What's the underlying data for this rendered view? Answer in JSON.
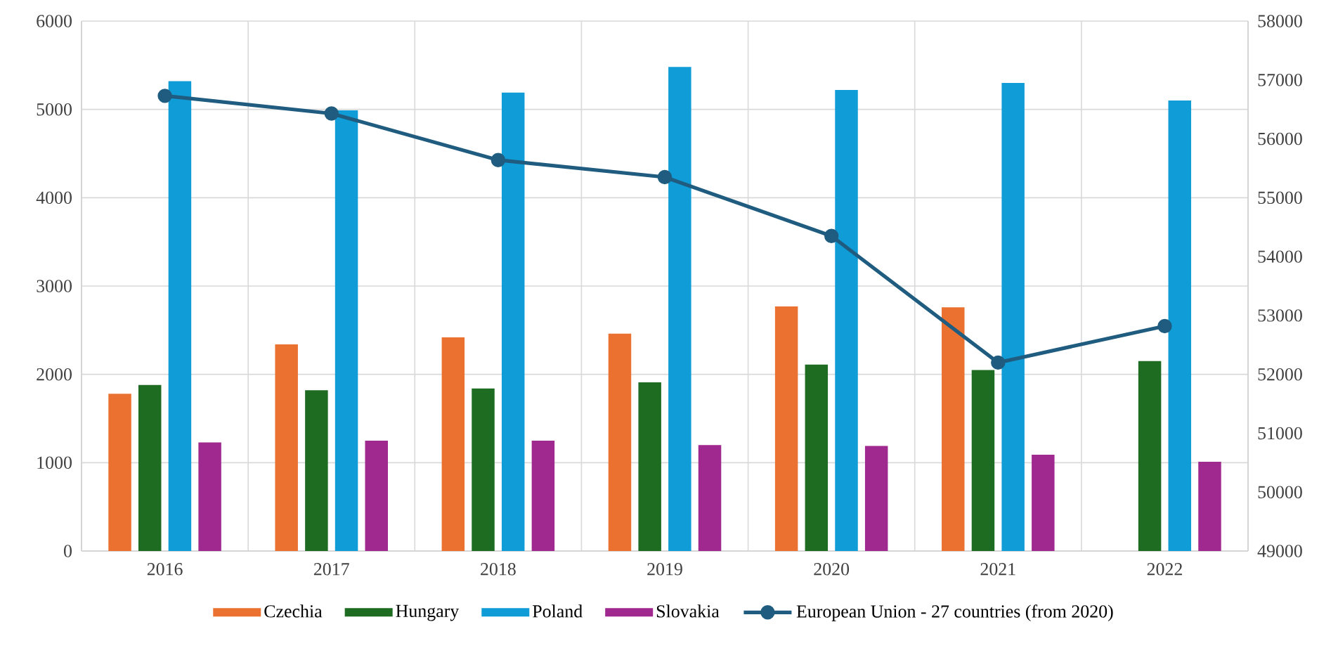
{
  "chart_data": {
    "type": "bar",
    "categories": [
      "2016",
      "2017",
      "2018",
      "2019",
      "2020",
      "2021",
      "2022"
    ],
    "series": [
      {
        "name": "Czechia",
        "color": "#ea7130",
        "values": [
          1780,
          2340,
          2420,
          2460,
          2770,
          2760,
          null
        ]
      },
      {
        "name": "Hungary",
        "color": "#1e6b22",
        "values": [
          1880,
          1820,
          1840,
          1910,
          2110,
          2050,
          2150
        ]
      },
      {
        "name": "Poland",
        "color": "#109cd6",
        "values": [
          5320,
          4990,
          5190,
          5480,
          5220,
          5300,
          5100
        ]
      },
      {
        "name": "Slovakia",
        "color": "#a0298f",
        "values": [
          1230,
          1250,
          1250,
          1200,
          1190,
          1090,
          1010
        ]
      },
      {
        "name": "European Union - 27 countries (from 2020)",
        "type": "line",
        "axis": "y2",
        "marker": "circle",
        "color": "#1f5c7f",
        "values": [
          56730,
          56430,
          55640,
          55350,
          54350,
          52200,
          52820
        ]
      }
    ],
    "ylim": [
      0,
      6000
    ],
    "yticks": [
      0,
      1000,
      2000,
      3000,
      4000,
      5000,
      6000
    ],
    "y2lim": [
      49000,
      58000
    ],
    "y2ticks": [
      49000,
      50000,
      51000,
      52000,
      53000,
      54000,
      55000,
      56000,
      57000,
      58000
    ],
    "grid": true,
    "legend": "bottom"
  }
}
